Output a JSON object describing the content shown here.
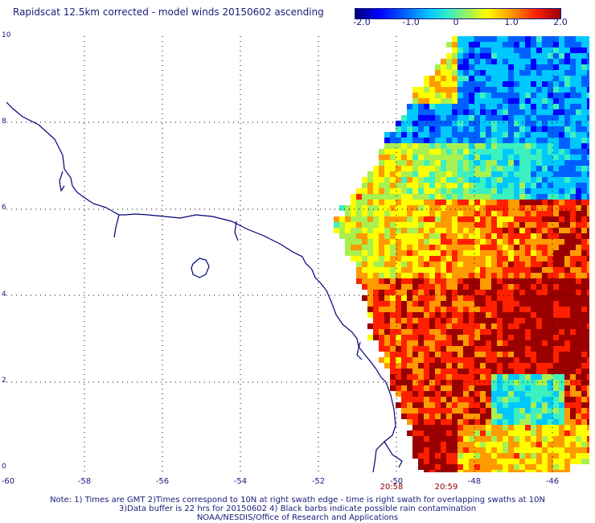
{
  "title": "Rapidscat 12.5km corrected - model winds 20150602 ascending",
  "colorbar": {
    "labels": [
      "-2.0",
      "-1.0",
      "0",
      "1.0",
      "2.0"
    ],
    "colors": [
      "#00007a",
      "#0000ff",
      "#0060ff",
      "#00c8ff",
      "#3cf0c0",
      "#a8f050",
      "#ffff00",
      "#ff9a00",
      "#ff2000",
      "#9a0000"
    ]
  },
  "axes": {
    "lat_labels": [
      "10",
      "8",
      "6",
      "4",
      "2",
      "0"
    ],
    "lon_labels": [
      "-60",
      "-58",
      "-56",
      "-54",
      "-52",
      "-50",
      "-48",
      "-46"
    ]
  },
  "times": [
    "20:58",
    "20:59"
  ],
  "notes": {
    "line1": "Note: 1) Times are GMT 2)Times correspond to 10N at right swath edge - time is right swath for overlapping swaths at 10N",
    "line2": "3)Data buffer is 22 hrs for 20150602 4) Black barbs indicate possible rain contamination",
    "line3": "NOAA/NESDIS/Office of Research and Applications"
  }
}
